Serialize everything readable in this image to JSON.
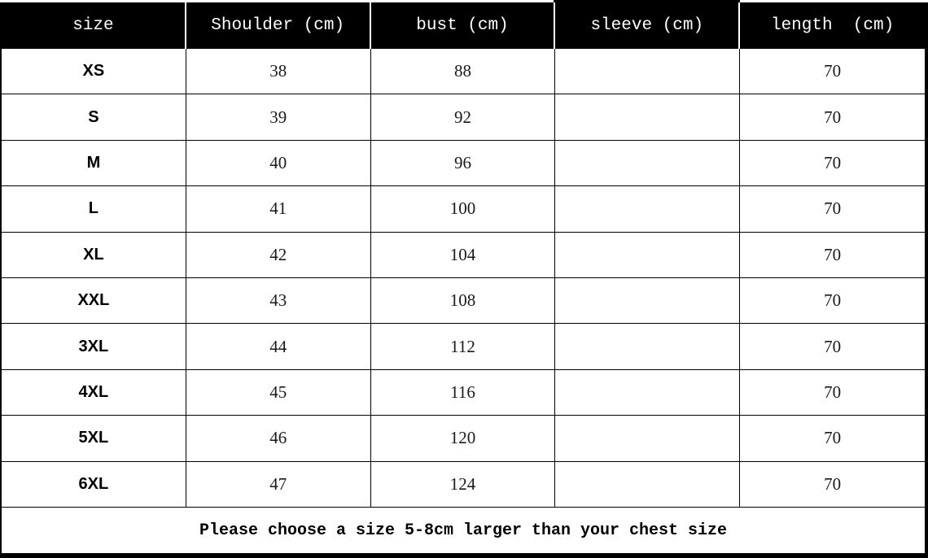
{
  "chart_data": {
    "type": "table",
    "columns": [
      "size",
      "Shoulder (cm)",
      "bust (cm)",
      "sleeve (cm)",
      "length  (cm)"
    ],
    "rows": [
      {
        "size": "XS",
        "shoulder": "38",
        "bust": "88",
        "sleeve": "",
        "length": "70"
      },
      {
        "size": "S",
        "shoulder": "39",
        "bust": "92",
        "sleeve": "",
        "length": "70"
      },
      {
        "size": "M",
        "shoulder": "40",
        "bust": "96",
        "sleeve": "",
        "length": "70"
      },
      {
        "size": "L",
        "shoulder": "41",
        "bust": "100",
        "sleeve": "",
        "length": "70"
      },
      {
        "size": "XL",
        "shoulder": "42",
        "bust": "104",
        "sleeve": "",
        "length": "70"
      },
      {
        "size": "XXL",
        "shoulder": "43",
        "bust": "108",
        "sleeve": "",
        "length": "70"
      },
      {
        "size": "3XL",
        "shoulder": "44",
        "bust": "112",
        "sleeve": "",
        "length": "70"
      },
      {
        "size": "4XL",
        "shoulder": "45",
        "bust": "116",
        "sleeve": "",
        "length": "70"
      },
      {
        "size": "5XL",
        "shoulder": "46",
        "bust": "120",
        "sleeve": "",
        "length": "70"
      },
      {
        "size": "6XL",
        "shoulder": "47",
        "bust": "124",
        "sleeve": "",
        "length": "70"
      }
    ],
    "footnote": "Please choose a size 5-8cm larger than your chest size",
    "layout": {
      "header_position": "top",
      "grid": "on",
      "sleeve_column_empty": true
    }
  },
  "colors": {
    "header_bg": "#000000",
    "header_text": "#ffffff",
    "body_bg": "#ffffff",
    "body_text": "#1a1a1a",
    "border": "#000000"
  }
}
